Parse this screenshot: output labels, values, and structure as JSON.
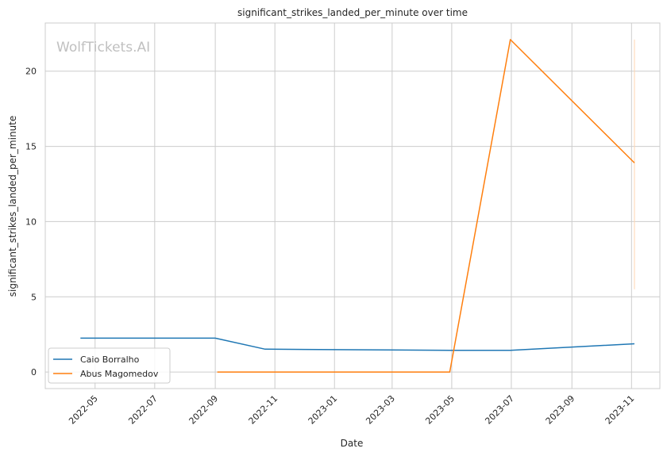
{
  "watermark": "WolfTickets.AI",
  "chart_data": {
    "type": "line",
    "title": "significant_strikes_landed_per_minute over time",
    "xlabel": "Date",
    "ylabel": "significant_strikes_landed_per_minute",
    "x_ticks": [
      "2022-05",
      "2022-07",
      "2022-09",
      "2022-11",
      "2023-01",
      "2023-03",
      "2023-05",
      "2023-07",
      "2023-09",
      "2023-11"
    ],
    "y_ticks": [
      0,
      5,
      10,
      15,
      20
    ],
    "xlim": [
      "2022-03-11",
      "2023-11-30"
    ],
    "ylim": [
      -1.1,
      23.2
    ],
    "grid": true,
    "legend_position": "lower-left",
    "series": [
      {
        "name": "Caio Borralho",
        "color": "#1f77b4",
        "points": [
          {
            "x": "2022-04-16",
            "y": 2.25
          },
          {
            "x": "2022-09-01",
            "y": 2.25
          },
          {
            "x": "2022-10-22",
            "y": 1.52
          },
          {
            "x": "2023-04-29",
            "y": 1.44
          },
          {
            "x": "2023-06-30",
            "y": 1.44
          },
          {
            "x": "2023-11-04",
            "y": 1.88
          }
        ]
      },
      {
        "name": "Abus Magomedov",
        "color": "#ff7f0e",
        "points": [
          {
            "x": "2022-09-03",
            "y": 0.0
          },
          {
            "x": "2023-04-29",
            "y": 0.0
          },
          {
            "x": "2023-06-30",
            "y": 22.1
          },
          {
            "x": "2023-11-04",
            "y": 13.9
          }
        ]
      }
    ]
  }
}
